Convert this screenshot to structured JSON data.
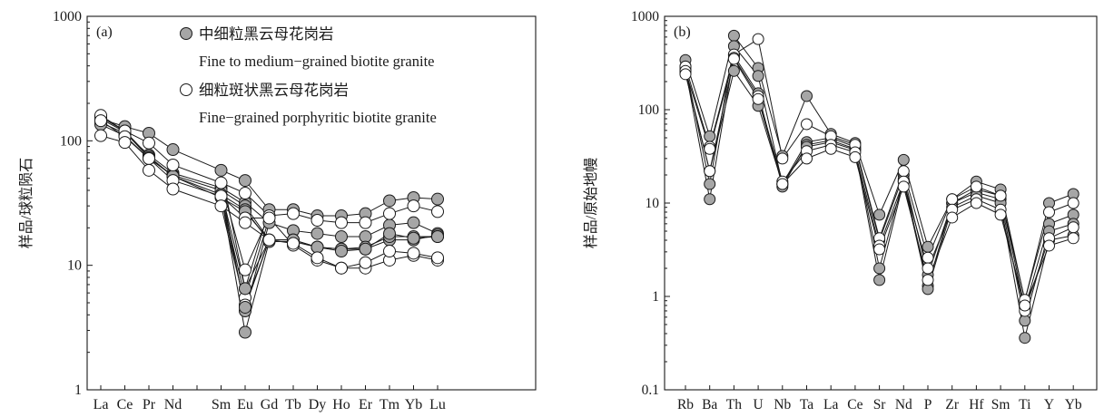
{
  "chart_data": [
    {
      "panel_label": "(a)",
      "type": "line",
      "yscale": "log",
      "ylim": [
        1,
        1000
      ],
      "ytick_labels": [
        "1",
        "10",
        "100",
        "1000"
      ],
      "ylabel": "样品/球粒陨石",
      "categories": [
        "La",
        "Ce",
        "Pr",
        "Nd",
        "",
        "Sm",
        "Eu",
        "Gd",
        "Tb",
        "Dy",
        "Ho",
        "Er",
        "Tm",
        "Yb",
        "Lu"
      ],
      "legend": [
        {
          "marker": "filled",
          "label_cn": "中细粒黑云母花岗岩",
          "label_en": "Fine to medium−grained biotite granite"
        },
        {
          "marker": "open",
          "label_cn": "细粒斑状黑云母花岗岩",
          "label_en": "Fine−grained porphyritic biotite granite"
        }
      ],
      "series": [
        {
          "marker": "filled",
          "values": [
            150,
            130,
            115,
            85,
            null,
            58,
            48,
            28,
            28,
            25,
            25,
            26,
            33,
            35,
            34
          ]
        },
        {
          "marker": "filled",
          "values": [
            140,
            115,
            77,
            55,
            null,
            42,
            32,
            22,
            19,
            18,
            17,
            17,
            21,
            22,
            18
          ]
        },
        {
          "marker": "filled",
          "values": [
            135,
            110,
            72,
            53,
            null,
            40,
            30,
            16,
            16,
            14,
            13.5,
            13.5,
            16,
            16,
            17.5
          ]
        },
        {
          "marker": "filled",
          "values": [
            155,
            120,
            75,
            52,
            null,
            37,
            28,
            15.5,
            15.5,
            14,
            13.5,
            14,
            17,
            17,
            17
          ]
        },
        {
          "marker": "filled",
          "values": [
            150,
            118,
            73,
            52,
            null,
            35,
            27,
            16,
            16,
            14,
            13,
            13.5,
            18,
            16.5,
            17
          ]
        },
        {
          "marker": "open",
          "values": [
            160,
            120,
            96,
            64,
            null,
            46,
            38,
            25,
            26,
            23,
            22,
            22,
            26,
            30,
            27
          ]
        },
        {
          "marker": "open",
          "values": [
            145,
            108,
            72,
            48,
            null,
            36,
            24,
            24,
            14.5,
            11,
            9.5,
            9.5,
            11,
            12,
            11
          ]
        },
        {
          "marker": "open",
          "values": [
            110,
            97,
            58,
            41,
            null,
            30,
            22,
            16,
            15,
            11.5,
            9.5,
            10.5,
            13,
            12.5,
            11.5
          ]
        }
      ],
      "eu_values": {
        "filled": [
          6.5,
          4.3,
          6.5,
          2.9,
          4.6
        ],
        "open": [
          9.2,
          5.5,
          4.8
        ]
      }
    },
    {
      "panel_label": "(b)",
      "type": "line",
      "yscale": "log",
      "ylim": [
        0.1,
        1000
      ],
      "ytick_labels": [
        "0.1",
        "1",
        "10",
        "100",
        "1000"
      ],
      "ylabel": "样品/原始地幔",
      "categories": [
        "Rb",
        "Ba",
        "Th",
        "U",
        "Nb",
        "Ta",
        "La",
        "Ce",
        "Sr",
        "Nd",
        "P",
        "Zr",
        "Hf",
        "Sm",
        "Ti",
        "Y",
        "Yb"
      ],
      "series": [
        {
          "marker": "filled",
          "values": [
            340,
            52,
            620,
            280,
            32,
            140,
            55,
            44,
            7.5,
            29,
            3.4,
            11,
            17,
            14,
            0.9,
            10,
            12.5
          ]
        },
        {
          "marker": "filled",
          "values": [
            290,
            16,
            480,
            230,
            16,
            45,
            50,
            40,
            4,
            20,
            1.7,
            10,
            14,
            12,
            0.75,
            6,
            7.5
          ]
        },
        {
          "marker": "filled",
          "values": [
            270,
            11,
            380,
            150,
            15,
            42,
            47,
            38,
            2,
            18,
            1.3,
            10,
            13,
            11,
            0.55,
            5,
            6
          ]
        },
        {
          "marker": "filled",
          "values": [
            250,
            22,
            260,
            110,
            16,
            40,
            45,
            37,
            1.5,
            17,
            1.2,
            9,
            12,
            10,
            0.36,
            4,
            4.5
          ]
        },
        {
          "marker": "open",
          "values": [
            290,
            40,
            390,
            570,
            30,
            70,
            52,
            42,
            4.2,
            22,
            2.6,
            11,
            15,
            12,
            0.92,
            8,
            10
          ]
        },
        {
          "marker": "open",
          "values": [
            260,
            38,
            360,
            140,
            17,
            36,
            42,
            35,
            3.5,
            17,
            2,
            8.5,
            11,
            8.5,
            0.7,
            4.2,
            5.5
          ]
        },
        {
          "marker": "open",
          "values": [
            240,
            22,
            350,
            130,
            16,
            30,
            38,
            31,
            3.2,
            15,
            1.5,
            7,
            10,
            7.5,
            0.8,
            3.5,
            4.2
          ]
        }
      ]
    }
  ]
}
